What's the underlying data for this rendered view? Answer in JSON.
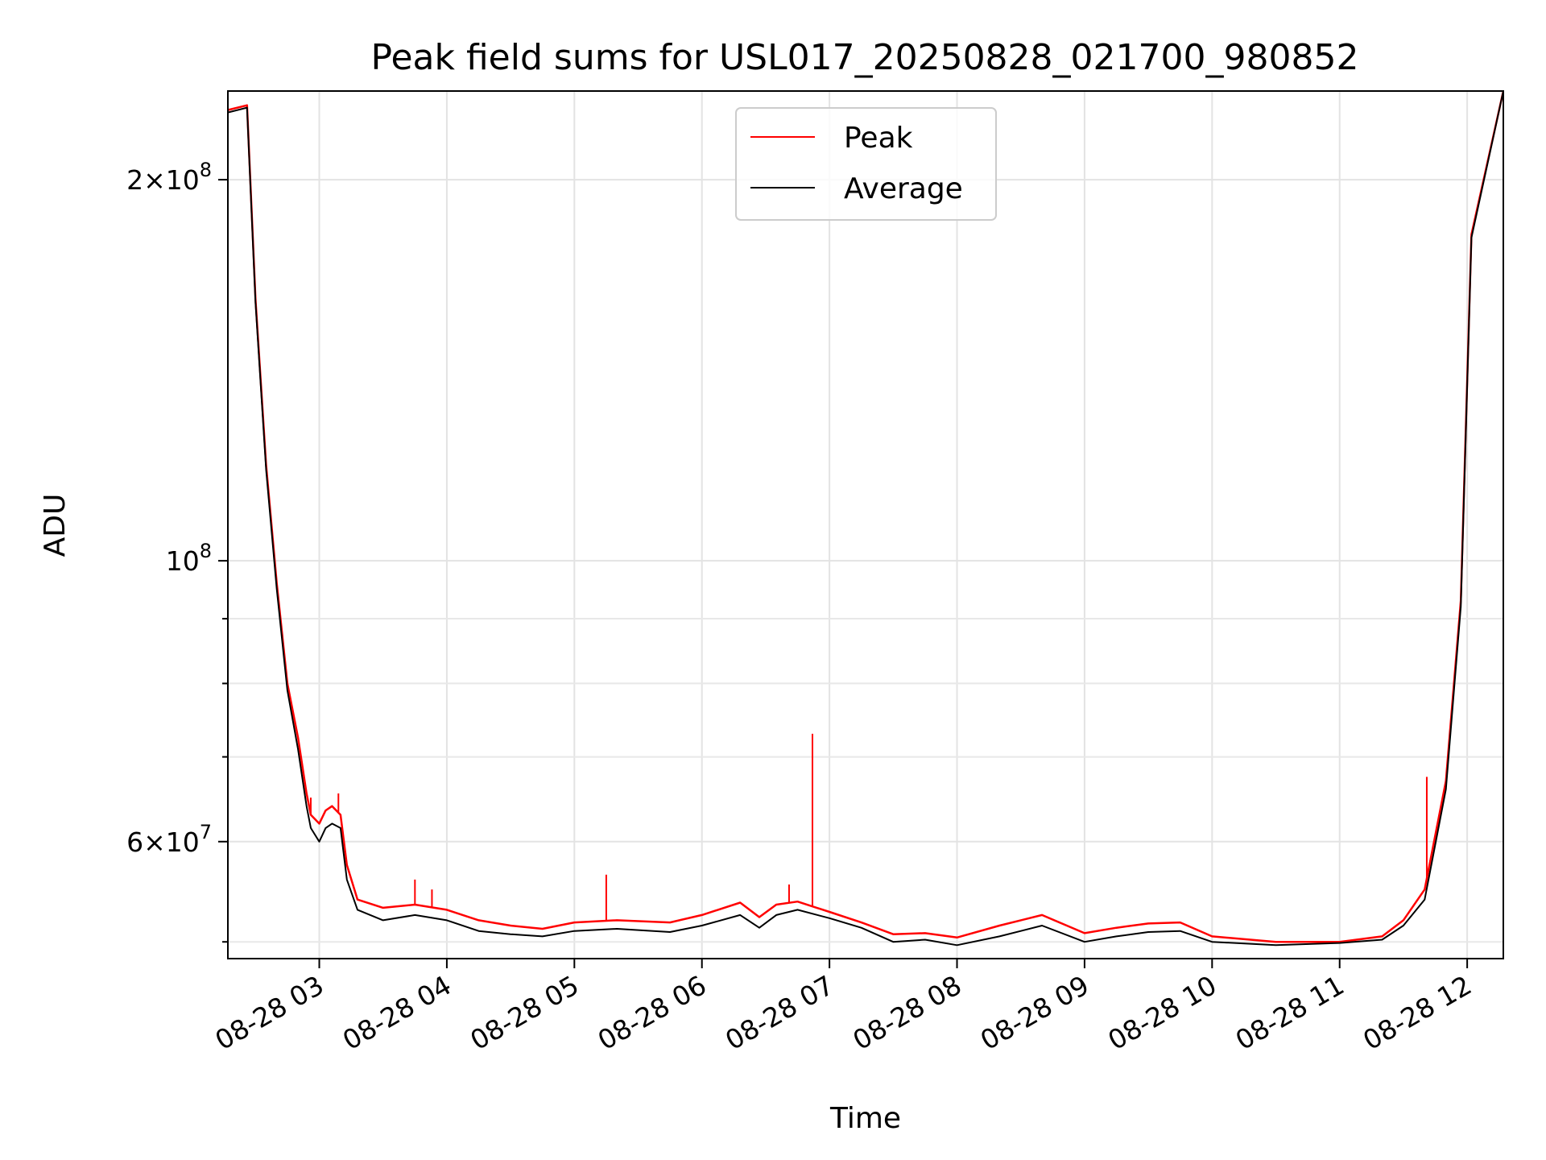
{
  "chart_data": {
    "type": "line",
    "title": "Peak field sums for USL017_20250828_021700_980852",
    "xlabel": "Time",
    "ylabel": "ADU",
    "x_range": [
      "2025-08-28 02:17",
      "2025-08-28 12:17"
    ],
    "y_range": [
      48500000,
      235000000
    ],
    "y_scale": "log",
    "grid": true,
    "legend_position": "top-center",
    "x_ticks": [
      {
        "value": "2025-08-28 03:00",
        "label": "08-28 03"
      },
      {
        "value": "2025-08-28 04:00",
        "label": "08-28 04"
      },
      {
        "value": "2025-08-28 05:00",
        "label": "08-28 05"
      },
      {
        "value": "2025-08-28 06:00",
        "label": "08-28 06"
      },
      {
        "value": "2025-08-28 07:00",
        "label": "08-28 07"
      },
      {
        "value": "2025-08-28 08:00",
        "label": "08-28 08"
      },
      {
        "value": "2025-08-28 09:00",
        "label": "08-28 09"
      },
      {
        "value": "2025-08-28 10:00",
        "label": "08-28 10"
      },
      {
        "value": "2025-08-28 11:00",
        "label": "08-28 11"
      },
      {
        "value": "2025-08-28 12:00",
        "label": "08-28 12"
      }
    ],
    "y_major_ticks": [
      {
        "value": 60000000,
        "base": "6",
        "exp": "7"
      },
      {
        "value": 100000000,
        "base": "",
        "exp": "8"
      },
      {
        "value": 200000000,
        "base": "2",
        "exp": "8"
      }
    ],
    "y_minor_ticks": [
      50000000,
      70000000,
      80000000,
      90000000
    ],
    "series": [
      {
        "name": "Average",
        "color": "#000000",
        "x": [
          "2025-08-28 02:17",
          "2025-08-28 02:26",
          "2025-08-28 02:30",
          "2025-08-28 02:35",
          "2025-08-28 02:40",
          "2025-08-28 02:45",
          "2025-08-28 02:50",
          "2025-08-28 02:54",
          "2025-08-28 02:56",
          "2025-08-28 03:00",
          "2025-08-28 03:03",
          "2025-08-28 03:06",
          "2025-08-28 03:10",
          "2025-08-28 03:13",
          "2025-08-28 03:18",
          "2025-08-28 03:30",
          "2025-08-28 03:45",
          "2025-08-28 04:00",
          "2025-08-28 04:15",
          "2025-08-28 04:30",
          "2025-08-28 04:45",
          "2025-08-28 05:00",
          "2025-08-28 05:20",
          "2025-08-28 05:45",
          "2025-08-28 06:00",
          "2025-08-28 06:18",
          "2025-08-28 06:27",
          "2025-08-28 06:35",
          "2025-08-28 06:45",
          "2025-08-28 07:00",
          "2025-08-28 07:15",
          "2025-08-28 07:30",
          "2025-08-28 07:45",
          "2025-08-28 08:00",
          "2025-08-28 08:20",
          "2025-08-28 08:40",
          "2025-08-28 09:00",
          "2025-08-28 09:15",
          "2025-08-28 09:30",
          "2025-08-28 09:45",
          "2025-08-28 10:00",
          "2025-08-28 10:30",
          "2025-08-28 11:00",
          "2025-08-28 11:20",
          "2025-08-28 11:30",
          "2025-08-28 11:40",
          "2025-08-28 11:50",
          "2025-08-28 11:57",
          "2025-08-28 12:02",
          "2025-08-28 12:17"
        ],
        "y": [
          226000000,
          228000000,
          160000000,
          118000000,
          95000000,
          79000000,
          71000000,
          64000000,
          61500000,
          60000000,
          61500000,
          62000000,
          61500000,
          56000000,
          53000000,
          52000000,
          52500000,
          52000000,
          51000000,
          50700000,
          50500000,
          51000000,
          51200000,
          50900000,
          51500000,
          52500000,
          51300000,
          52500000,
          53000000,
          52200000,
          51300000,
          50000000,
          50200000,
          49700000,
          50500000,
          51500000,
          50000000,
          50500000,
          50900000,
          51000000,
          50000000,
          49700000,
          49900000,
          50200000,
          51500000,
          54000000,
          66000000,
          92000000,
          180000000,
          235000000
        ]
      },
      {
        "name": "Peak",
        "color": "#ff0000",
        "x": [
          "2025-08-28 02:17",
          "2025-08-28 02:26",
          "2025-08-28 02:30",
          "2025-08-28 02:35",
          "2025-08-28 02:40",
          "2025-08-28 02:45",
          "2025-08-28 02:50",
          "2025-08-28 02:54",
          "2025-08-28 02:56",
          "2025-08-28 03:00",
          "2025-08-28 03:03",
          "2025-08-28 03:06",
          "2025-08-28 03:10",
          "2025-08-28 03:13",
          "2025-08-28 03:18",
          "2025-08-28 03:30",
          "2025-08-28 03:45",
          "2025-08-28 04:00",
          "2025-08-28 04:15",
          "2025-08-28 04:30",
          "2025-08-28 04:45",
          "2025-08-28 05:00",
          "2025-08-28 05:20",
          "2025-08-28 05:45",
          "2025-08-28 06:00",
          "2025-08-28 06:18",
          "2025-08-28 06:27",
          "2025-08-28 06:35",
          "2025-08-28 06:45",
          "2025-08-28 07:00",
          "2025-08-28 07:15",
          "2025-08-28 07:30",
          "2025-08-28 07:45",
          "2025-08-28 08:00",
          "2025-08-28 08:20",
          "2025-08-28 08:40",
          "2025-08-28 09:00",
          "2025-08-28 09:15",
          "2025-08-28 09:30",
          "2025-08-28 09:45",
          "2025-08-28 10:00",
          "2025-08-28 10:30",
          "2025-08-28 11:00",
          "2025-08-28 11:20",
          "2025-08-28 11:30",
          "2025-08-28 11:40",
          "2025-08-28 11:50",
          "2025-08-28 11:57",
          "2025-08-28 12:02",
          "2025-08-28 12:17"
        ],
        "y": [
          227000000,
          229000000,
          161000000,
          119000000,
          96000000,
          80000000,
          72500000,
          65500000,
          63000000,
          62000000,
          63500000,
          64000000,
          63000000,
          57500000,
          54000000,
          53200000,
          53500000,
          53000000,
          52000000,
          51500000,
          51200000,
          51800000,
          52000000,
          51800000,
          52500000,
          53700000,
          52300000,
          53500000,
          53800000,
          52800000,
          51800000,
          50700000,
          50800000,
          50400000,
          51500000,
          52500000,
          50800000,
          51300000,
          51700000,
          51800000,
          50500000,
          50000000,
          50000000,
          50500000,
          52000000,
          55000000,
          67000000,
          93000000,
          181000000,
          235000000
        ],
        "spikes": [
          {
            "x": "2025-08-28 06:52",
            "y": 73000000
          },
          {
            "x": "2025-08-28 05:15",
            "y": 56500000
          },
          {
            "x": "2025-08-28 03:45",
            "y": 56000000
          },
          {
            "x": "2025-08-28 03:53",
            "y": 55000000
          },
          {
            "x": "2025-08-28 02:56",
            "y": 65000000
          },
          {
            "x": "2025-08-28 03:09",
            "y": 65500000
          },
          {
            "x": "2025-08-28 06:41",
            "y": 55500000
          },
          {
            "x": "2025-08-28 11:41",
            "y": 67500000
          }
        ]
      }
    ]
  }
}
